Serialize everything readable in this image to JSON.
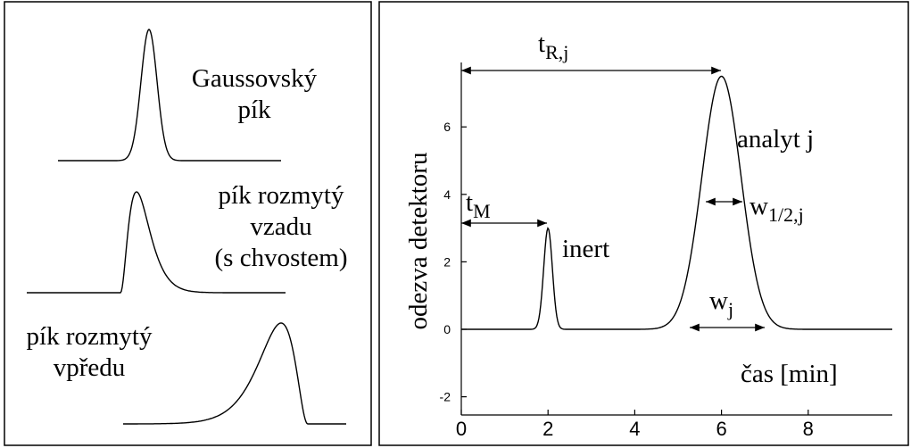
{
  "left": {
    "peaks": [
      {
        "lines": [
          "Gaussovský",
          "pík"
        ]
      },
      {
        "lines": [
          "pík rozmytý",
          "vzadu",
          "(s chvostem)"
        ]
      },
      {
        "lines": [
          "pík rozmytý",
          "vpředu"
        ]
      }
    ]
  },
  "right": {
    "y_label": "odezva detektoru",
    "x_label": "čas [min]",
    "xticks": [
      0,
      2,
      4,
      6,
      8
    ],
    "yticks": [
      -2,
      0,
      2,
      4,
      6
    ],
    "annotations": {
      "t_R": {
        "main": "t",
        "sub": "R,j"
      },
      "t_M": {
        "main": "t",
        "sub": "M"
      },
      "inert": "inert",
      "analyt": "analyt j",
      "w_half": {
        "main": "w",
        "sub": "1/2,j"
      },
      "w": {
        "main": "w",
        "sub": "j"
      }
    }
  }
}
